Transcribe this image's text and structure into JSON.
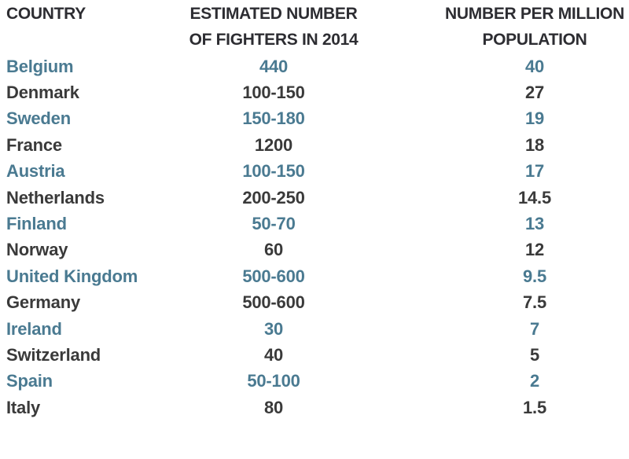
{
  "colors": {
    "accent_teal": "#4a7a91",
    "text_dark": "#3a3a3a",
    "header_dark": "#2d2d32",
    "background": "#ffffff"
  },
  "table": {
    "headers": {
      "country": "COUNTRY",
      "fighters_line1": "ESTIMATED NUMBER",
      "fighters_line2": "OF FIGHTERS IN 2014",
      "per_million_line1": "NUMBER PER MILLION",
      "per_million_line2": "POPULATION"
    },
    "rows": [
      {
        "country": "Belgium",
        "fighters": "440",
        "per_million": "40"
      },
      {
        "country": "Denmark",
        "fighters": "100-150",
        "per_million": "27"
      },
      {
        "country": "Sweden",
        "fighters": "150-180",
        "per_million": "19"
      },
      {
        "country": "France",
        "fighters": "1200",
        "per_million": "18"
      },
      {
        "country": "Austria",
        "fighters": "100-150",
        "per_million": "17"
      },
      {
        "country": "Netherlands",
        "fighters": "200-250",
        "per_million": "14.5"
      },
      {
        "country": "Finland",
        "fighters": "50-70",
        "per_million": "13"
      },
      {
        "country": "Norway",
        "fighters": "60",
        "per_million": "12"
      },
      {
        "country": "United Kingdom",
        "fighters": "500-600",
        "per_million": "9.5"
      },
      {
        "country": "Germany",
        "fighters": "500-600",
        "per_million": "7.5"
      },
      {
        "country": "Ireland",
        "fighters": "30",
        "per_million": "7"
      },
      {
        "country": "Switzerland",
        "fighters": "40",
        "per_million": "5"
      },
      {
        "country": "Spain",
        "fighters": "50-100",
        "per_million": "2"
      },
      {
        "country": "Italy",
        "fighters": "80",
        "per_million": "1.5"
      }
    ]
  },
  "chart_data": {
    "type": "table",
    "columns": [
      "COUNTRY",
      "ESTIMATED NUMBER OF FIGHTERS IN 2014",
      "NUMBER PER MILLION POPULATION"
    ],
    "rows": [
      [
        "Belgium",
        "440",
        40
      ],
      [
        "Denmark",
        "100-150",
        27
      ],
      [
        "Sweden",
        "150-180",
        19
      ],
      [
        "France",
        "1200",
        18
      ],
      [
        "Austria",
        "100-150",
        17
      ],
      [
        "Netherlands",
        "200-250",
        14.5
      ],
      [
        "Finland",
        "50-70",
        13
      ],
      [
        "Norway",
        "60",
        12
      ],
      [
        "United Kingdom",
        "500-600",
        9.5
      ],
      [
        "Germany",
        "500-600",
        7.5
      ],
      [
        "Ireland",
        "30",
        7
      ],
      [
        "Switzerland",
        "40",
        5
      ],
      [
        "Spain",
        "50-100",
        2
      ],
      [
        "Italy",
        "80",
        1.5
      ]
    ],
    "layout_hints": {
      "row_color_alternation": [
        "teal",
        "dark"
      ],
      "column_alignment": [
        "left",
        "center",
        "center"
      ]
    }
  }
}
